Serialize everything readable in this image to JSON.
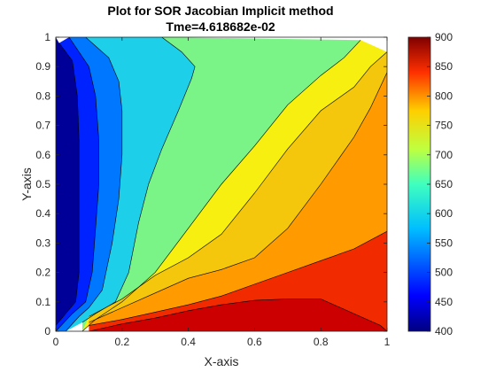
{
  "chart_data": {
    "type": "contour",
    "title": "Plot for SOR Jacobian Implicit method",
    "subtitle": "Tme=4.618682e-02",
    "xlabel": "X-axis",
    "ylabel": "Y-axis",
    "xlim": [
      0,
      1
    ],
    "ylim": [
      0,
      1
    ],
    "x_ticks": [
      "0",
      "0.2",
      "0.4",
      "0.6",
      "0.8",
      "1"
    ],
    "y_ticks": [
      "0",
      "0.1",
      "0.2",
      "0.3",
      "0.4",
      "0.5",
      "0.6",
      "0.7",
      "0.8",
      "0.9",
      "1"
    ],
    "colorbar": {
      "range": [
        400,
        900
      ],
      "ticks": [
        "400",
        "450",
        "500",
        "550",
        "600",
        "650",
        "700",
        "750",
        "800",
        "850",
        "900"
      ],
      "colormap": "jet"
    },
    "grid": false,
    "contour_levels": [
      450,
      500,
      550,
      600,
      650,
      700,
      750,
      800,
      850
    ],
    "contours": [
      {
        "level": 450,
        "points": [
          [
            0.0,
            0.02
          ],
          [
            0.03,
            0.06
          ],
          [
            0.06,
            0.1
          ],
          [
            0.07,
            0.2
          ],
          [
            0.07,
            0.35
          ],
          [
            0.07,
            0.5
          ],
          [
            0.07,
            0.65
          ],
          [
            0.065,
            0.8
          ],
          [
            0.05,
            0.92
          ],
          [
            0.01,
            0.98
          ]
        ]
      },
      {
        "level": 500,
        "points": [
          [
            0.0,
            0.0
          ],
          [
            0.05,
            0.06
          ],
          [
            0.09,
            0.1
          ],
          [
            0.11,
            0.2
          ],
          [
            0.12,
            0.35
          ],
          [
            0.13,
            0.5
          ],
          [
            0.13,
            0.65
          ],
          [
            0.12,
            0.8
          ],
          [
            0.1,
            0.9
          ],
          [
            0.04,
            1.0
          ]
        ]
      },
      {
        "level": 550,
        "points": [
          [
            0.03,
            0.0
          ],
          [
            0.07,
            0.05
          ],
          [
            0.1,
            0.08
          ],
          [
            0.14,
            0.14
          ],
          [
            0.17,
            0.3
          ],
          [
            0.19,
            0.45
          ],
          [
            0.2,
            0.6
          ],
          [
            0.2,
            0.75
          ],
          [
            0.19,
            0.85
          ],
          [
            0.16,
            0.93
          ],
          [
            0.09,
            1.0
          ]
        ]
      },
      {
        "level": 600,
        "points": [
          [
            0.08,
            0.03
          ],
          [
            0.12,
            0.06
          ],
          [
            0.18,
            0.1
          ],
          [
            0.22,
            0.2
          ],
          [
            0.25,
            0.37
          ],
          [
            0.28,
            0.5
          ],
          [
            0.32,
            0.62
          ],
          [
            0.37,
            0.75
          ],
          [
            0.41,
            0.86
          ],
          [
            0.42,
            0.9
          ],
          [
            0.38,
            0.95
          ],
          [
            0.32,
            1.0
          ]
        ]
      },
      {
        "level": 650,
        "points": [
          [
            0.08,
            0.0
          ],
          [
            0.12,
            0.04
          ],
          [
            0.2,
            0.1
          ],
          [
            0.3,
            0.2
          ],
          [
            0.4,
            0.35
          ],
          [
            0.5,
            0.5
          ],
          [
            0.6,
            0.63
          ],
          [
            0.7,
            0.77
          ],
          [
            0.8,
            0.87
          ],
          [
            0.87,
            0.93
          ],
          [
            0.92,
            0.99
          ]
        ]
      },
      {
        "level": 700,
        "points": [
          [
            0.1,
            0.05
          ],
          [
            0.2,
            0.11
          ],
          [
            0.3,
            0.19
          ],
          [
            0.4,
            0.25
          ],
          [
            0.5,
            0.33
          ],
          [
            0.6,
            0.47
          ],
          [
            0.7,
            0.62
          ],
          [
            0.8,
            0.75
          ],
          [
            0.9,
            0.83
          ],
          [
            0.95,
            0.9
          ],
          [
            1.0,
            0.95
          ]
        ]
      },
      {
        "level": 750,
        "points": [
          [
            0.1,
            0.03
          ],
          [
            0.2,
            0.08
          ],
          [
            0.3,
            0.13
          ],
          [
            0.4,
            0.18
          ],
          [
            0.5,
            0.21
          ],
          [
            0.6,
            0.25
          ],
          [
            0.7,
            0.35
          ],
          [
            0.8,
            0.5
          ],
          [
            0.9,
            0.66
          ],
          [
            0.95,
            0.76
          ],
          [
            1.0,
            0.88
          ]
        ]
      },
      {
        "level": 800,
        "points": [
          [
            0.1,
            0.02
          ],
          [
            0.2,
            0.04
          ],
          [
            0.3,
            0.065
          ],
          [
            0.4,
            0.09
          ],
          [
            0.5,
            0.12
          ],
          [
            0.6,
            0.16
          ],
          [
            0.7,
            0.2
          ],
          [
            0.8,
            0.24
          ],
          [
            0.9,
            0.28
          ],
          [
            1.0,
            0.34
          ]
        ]
      },
      {
        "level": 850,
        "points": [
          [
            0.1,
            0.0
          ],
          [
            0.2,
            0.025
          ],
          [
            0.3,
            0.045
          ],
          [
            0.4,
            0.07
          ],
          [
            0.5,
            0.09
          ],
          [
            0.6,
            0.105
          ],
          [
            0.7,
            0.11
          ],
          [
            0.8,
            0.11
          ],
          [
            0.9,
            0.06
          ],
          [
            0.98,
            0.02
          ],
          [
            1.0,
            0.0
          ]
        ]
      }
    ],
    "fill_colors": [
      "#000099",
      "#0022ff",
      "#0077ff",
      "#1ecfe9",
      "#7af486",
      "#f7ef10",
      "#f4c60c",
      "#ff9a00",
      "#f22a00",
      "#cc0000"
    ]
  }
}
